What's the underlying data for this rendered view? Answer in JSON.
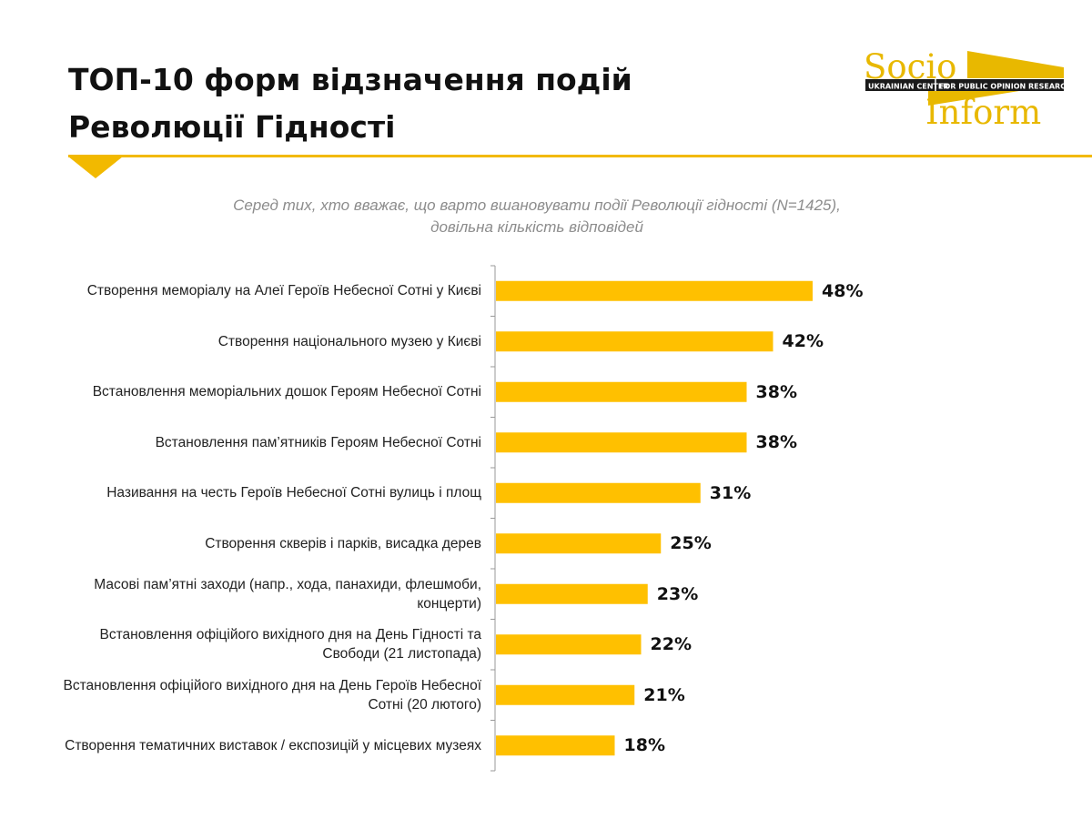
{
  "header": {
    "title_line1": "ТОП-10 форм відзначення подій",
    "title_line2": "Революції Гідності"
  },
  "logo": {
    "word1": "Socio",
    "word2": "Inform",
    "tag_left": "UKRAINIAN CENTER",
    "tag_right": "FOR PUBLIC OPINION RESEARCH",
    "colors": {
      "gold": "#e8b800",
      "dark": "#1a1a1a"
    }
  },
  "subtitle": {
    "line1": "Серед тих, хто вважає, що варто вшановувати події  Революції гідності (N=1425),",
    "line2": "довільна кількість відповідей"
  },
  "colors": {
    "bar": "#ffc000",
    "accent_rule": "#f2b900",
    "axis": "#999999"
  },
  "chart_data": {
    "type": "bar",
    "orientation": "horizontal",
    "unit": "%",
    "xlim": [
      0,
      100
    ],
    "grid": false,
    "categories": [
      "Створення меморіалу на Алеї Героїв Небесної Сотні у Києві",
      "Створення національного музею у Києві",
      "Встановлення меморіальних дошок Героям Небесної Сотні",
      "Встановлення пам’ятників Героям Небесної Сотні",
      "Називання на честь Героїв Небесної Сотні вулиць і площ",
      "Створення скверів і парків, висадка дерев",
      "Масові пам’ятні заходи (напр., хода, панахиди, флешмоби, концерти)",
      "Встановлення офіційого вихідного дня на День Гідності та Свободи (21 листопада)",
      "Встановлення офіційого вихідного дня на День Героїв Небесної Сотні (20 лютого)",
      "Створення тематичних виставок / експозицій у місцевих музеях"
    ],
    "values": [
      48,
      42,
      38,
      38,
      31,
      25,
      23,
      22,
      21,
      18
    ],
    "value_labels": [
      "48%",
      "42%",
      "38%",
      "38%",
      "31%",
      "25%",
      "23%",
      "22%",
      "21%",
      "18%"
    ]
  }
}
